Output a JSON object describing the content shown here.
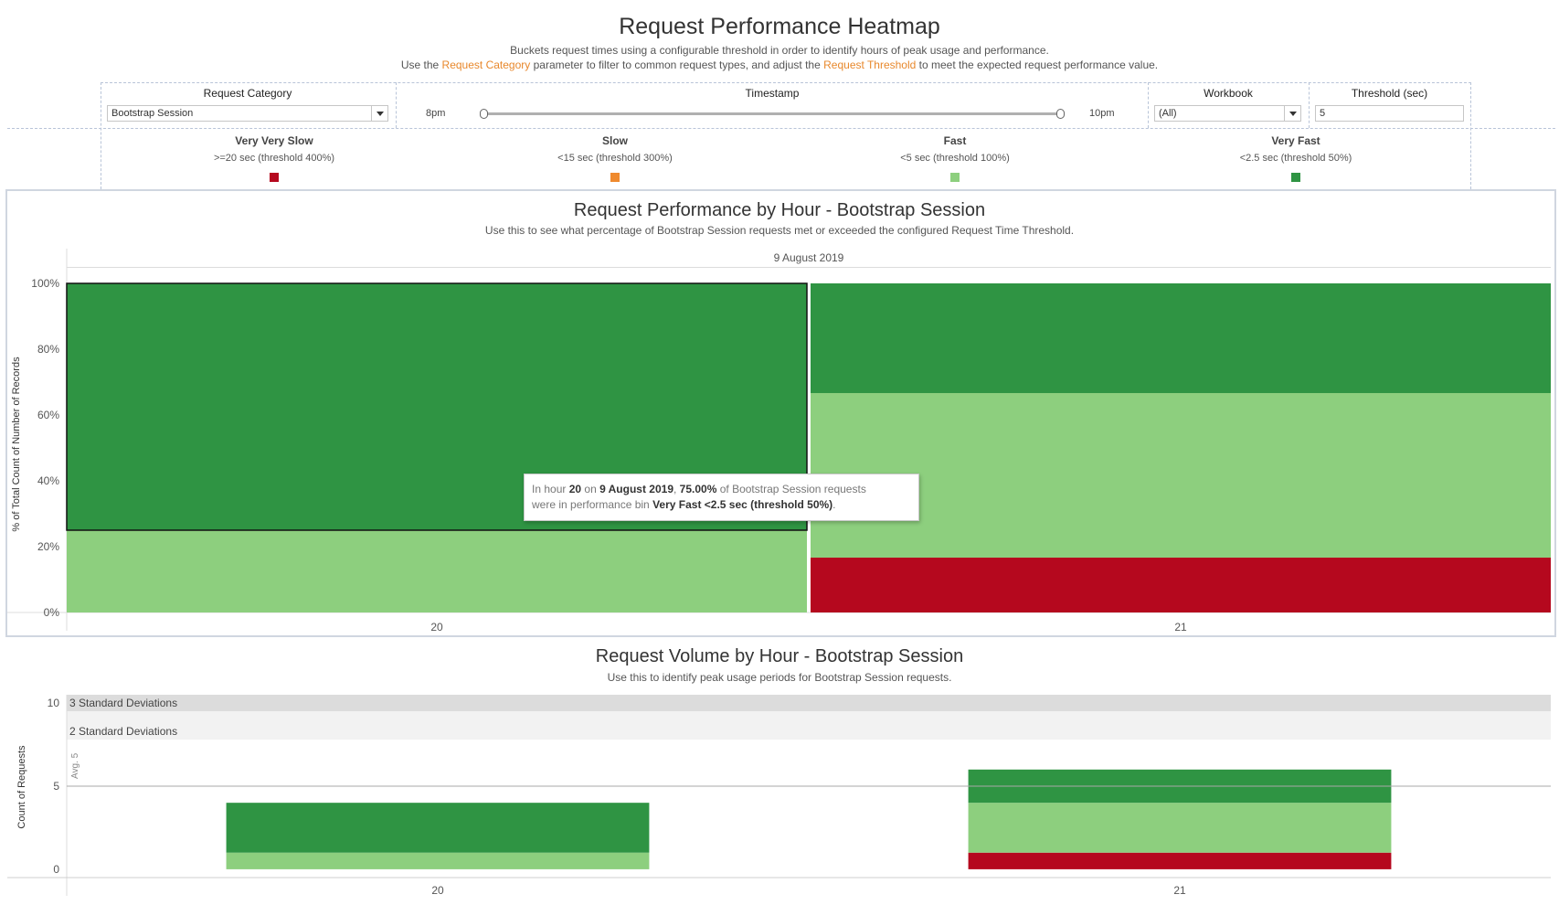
{
  "header": {
    "title": "Request Performance Heatmap",
    "subtitle_line1": "Buckets request times using a configurable threshold in order to identify hours of peak usage and performance.",
    "subtitle_line2_a": "Use the ",
    "subtitle_line2_link1": "Request Category",
    "subtitle_line2_b": " parameter to filter to common request types, and adjust the ",
    "subtitle_line2_link2": "Request Threshold",
    "subtitle_line2_c": " to meet the expected request performance value."
  },
  "filters": {
    "request_category": {
      "label": "Request Category",
      "value": "Bootstrap Session"
    },
    "timestamp": {
      "label": "Timestamp",
      "min_label": "8pm",
      "max_label": "10pm"
    },
    "workbook": {
      "label": "Workbook",
      "value": "(All)"
    },
    "threshold": {
      "label": "Threshold (sec)",
      "value": "5"
    }
  },
  "legend": [
    {
      "title": "Very Very Slow",
      "desc": ">=20 sec (threshold 400%)",
      "color": "#b5081e"
    },
    {
      "title": "Slow",
      "desc": "<15 sec (threshold 300%)",
      "color": "#ef8a2e"
    },
    {
      "title": "Fast",
      "desc": "<5 sec (threshold 100%)",
      "color": "#8dcf7e"
    },
    {
      "title": "Very Fast",
      "desc": "<2.5 sec (threshold 50%)",
      "color": "#2f9443"
    }
  ],
  "tooltip": {
    "p1": "In hour ",
    "hour": "20",
    "p2": " on ",
    "date": "9 August 2019",
    "p3": ", ",
    "pct": "75.00%",
    "p4": " of ",
    "category": "Bootstrap Session",
    "p5": " requests",
    "p6": "were in performance bin ",
    "bin": "Very Fast <2.5 sec (threshold 50%)",
    "p7": "."
  },
  "chart_data": [
    {
      "type": "bar",
      "stacked": "percent",
      "title": "Request Performance by Hour - Bootstrap Session",
      "subtitle": "Use this to see what percentage of Bootstrap Session requests met or exceeded the configured Request Time Threshold.",
      "column_header": "9 August 2019",
      "ylabel": "% of Total Count of Number of Records",
      "ylim": [
        0,
        100
      ],
      "yticks": [
        0,
        20,
        40,
        60,
        80,
        100
      ],
      "ytick_labels": [
        "0%",
        "20%",
        "40%",
        "60%",
        "80%",
        "100%"
      ],
      "categories": [
        "20",
        "21"
      ],
      "series": [
        {
          "name": "Very Very Slow",
          "color": "#b5081e",
          "values": [
            0,
            16.67
          ]
        },
        {
          "name": "Fast",
          "color": "#8dcf7e",
          "values": [
            25,
            50
          ]
        },
        {
          "name": "Very Fast",
          "color": "#2f9443",
          "values": [
            75,
            33.33
          ]
        }
      ],
      "highlight": {
        "category": "20",
        "series": "Very Fast"
      },
      "grid": false
    },
    {
      "type": "bar",
      "stacked": "count",
      "title": "Request Volume by Hour - Bootstrap Session",
      "subtitle": "Use this to identify peak usage periods for Bootstrap Session requests.",
      "ylabel": "Count of Requests",
      "ylim": [
        -0.5,
        10
      ],
      "yticks": [
        0,
        5,
        10
      ],
      "categories": [
        "20",
        "21"
      ],
      "series": [
        {
          "name": "Very Very Slow",
          "color": "#b5081e",
          "values": [
            0,
            1
          ]
        },
        {
          "name": "Fast",
          "color": "#8dcf7e",
          "values": [
            1,
            3
          ]
        },
        {
          "name": "Very Fast",
          "color": "#2f9443",
          "values": [
            3,
            2
          ]
        }
      ],
      "reference_line": {
        "label": "Avg. 5",
        "value": 5
      },
      "bands": [
        {
          "label": "3 Standard Deviations",
          "from": 9.5,
          "to": 10.5,
          "color": "#dcdcdc"
        },
        {
          "label": "2 Standard Deviations",
          "from": 7.8,
          "to": 9.5,
          "color": "#f2f2f2"
        }
      ]
    }
  ]
}
